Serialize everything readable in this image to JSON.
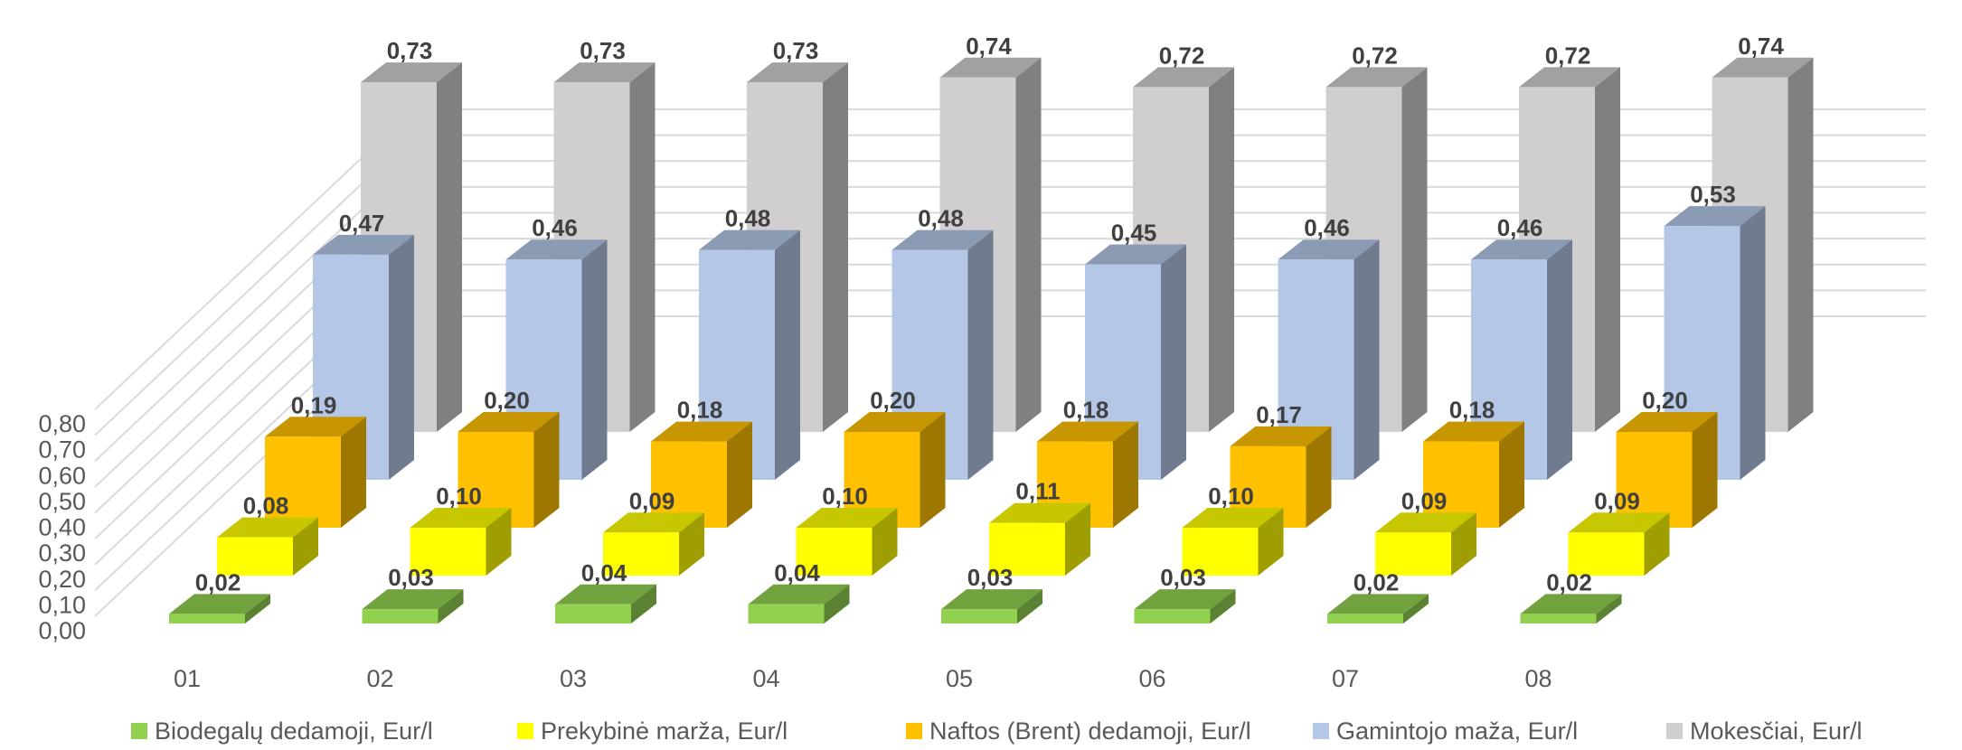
{
  "chart_data": {
    "type": "bar",
    "subtype": "3d-depth-columns",
    "title": "",
    "xlabel": "",
    "ylabel": "",
    "categories": [
      "01",
      "02",
      "03",
      "04",
      "05",
      "06",
      "07",
      "08"
    ],
    "y_ticks": [
      "0,00",
      "0,10",
      "0,20",
      "0,30",
      "0,40",
      "0,50",
      "0,60",
      "0,70",
      "0,80"
    ],
    "ylim": [
      0,
      0.8
    ],
    "grid": true,
    "legend_position": "bottom",
    "series": [
      {
        "name": "Biodegalų dedamoji, Eur/l",
        "color": "#92d050",
        "values": [
          0.02,
          0.03,
          0.04,
          0.04,
          0.03,
          0.03,
          0.02,
          0.02
        ],
        "labels": [
          "0,02",
          "0,03",
          "0,04",
          "0,04",
          "0,03",
          "0,03",
          "0,02",
          "0,02"
        ]
      },
      {
        "name": "Prekybinė marža, Eur/l",
        "color": "#ffff00",
        "values": [
          0.08,
          0.1,
          0.09,
          0.1,
          0.11,
          0.1,
          0.09,
          0.09
        ],
        "labels": [
          "0,08",
          "0,10",
          "0,09",
          "0,10",
          "0,11",
          "0,10",
          "0,09",
          "0,09"
        ]
      },
      {
        "name": "Naftos (Brent) dedamoji, Eur/l",
        "color": "#ffc000",
        "values": [
          0.19,
          0.2,
          0.18,
          0.2,
          0.18,
          0.17,
          0.18,
          0.2
        ],
        "labels": [
          "0,19",
          "0,20",
          "0,18",
          "0,20",
          "0,18",
          "0,17",
          "0,18",
          "0,20"
        ]
      },
      {
        "name": "Gamintojo maža, Eur/l",
        "color": "#b4c7e7",
        "values": [
          0.47,
          0.46,
          0.48,
          0.48,
          0.45,
          0.46,
          0.46,
          0.53
        ],
        "labels": [
          "0,47",
          "0,46",
          "0,48",
          "0,48",
          "0,45",
          "0,46",
          "0,46",
          "0,53"
        ]
      },
      {
        "name": "Mokesčiai, Eur/l",
        "color": "#d0cece",
        "values": [
          0.73,
          0.73,
          0.73,
          0.74,
          0.72,
          0.72,
          0.72,
          0.74
        ],
        "labels": [
          "0,73",
          "0,73",
          "0,73",
          "0,74",
          "0,72",
          "0,72",
          "0,72",
          "0,74"
        ]
      }
    ]
  }
}
